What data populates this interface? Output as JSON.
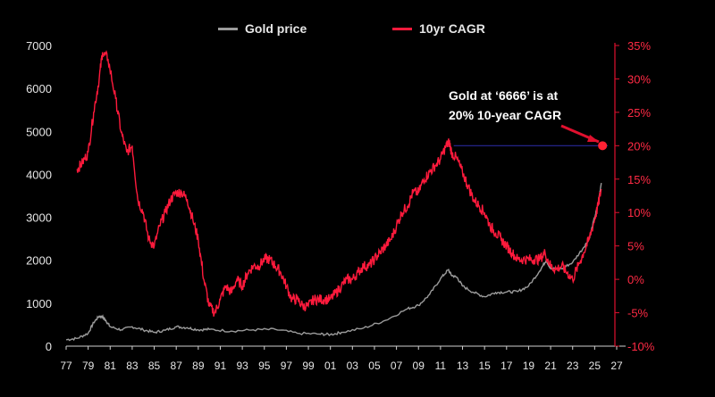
{
  "chart_data": {
    "type": "line",
    "title": "",
    "legend": [
      {
        "name": "Gold price",
        "color": "#9b9b9b"
      },
      {
        "name": "10yr CAGR",
        "color": "#ff1a3c"
      }
    ],
    "x_tick_labels": [
      "77",
      "79",
      "81",
      "83",
      "85",
      "87",
      "89",
      "91",
      "93",
      "95",
      "97",
      "99",
      "01",
      "03",
      "05",
      "07",
      "09",
      "11",
      "13",
      "15",
      "17",
      "19",
      "21",
      "23",
      "25",
      "27"
    ],
    "x_range": [
      1977,
      2027
    ],
    "left_axis": {
      "range": [
        0,
        7000
      ],
      "ticks": [
        "0",
        "1000",
        "2000",
        "3000",
        "4000",
        "5000",
        "6000",
        "7000"
      ]
    },
    "right_axis": {
      "range": [
        -10,
        35
      ],
      "ticks": [
        "-10%",
        "-5%",
        "0%",
        "5%",
        "10%",
        "15%",
        "20%",
        "25%",
        "30%",
        "35%"
      ]
    },
    "series": [
      {
        "name": "Gold price",
        "axis": "left",
        "x": [
          1977,
          1978,
          1979,
          1979.5,
          1980,
          1980.3,
          1980.6,
          1981,
          1982,
          1983,
          1984,
          1985,
          1986,
          1987,
          1988,
          1989,
          1990,
          1992,
          1994,
          1996,
          1998,
          2000,
          2001,
          2002,
          2004,
          2006,
          2008,
          2009,
          2010,
          2011,
          2011.7,
          2012,
          2012.5,
          2013,
          2014,
          2015,
          2016,
          2017,
          2018,
          2019,
          2020,
          2020.6,
          2021,
          2022,
          2023,
          2024,
          2024.5,
          2025,
          2025.3,
          2025.6
        ],
        "values": [
          150,
          180,
          300,
          550,
          700,
          680,
          600,
          450,
          380,
          450,
          380,
          320,
          370,
          450,
          430,
          380,
          390,
          350,
          380,
          390,
          300,
          280,
          270,
          320,
          420,
          600,
          870,
          950,
          1200,
          1570,
          1780,
          1650,
          1600,
          1400,
          1250,
          1150,
          1250,
          1260,
          1270,
          1400,
          1750,
          2000,
          1800,
          1800,
          1950,
          2300,
          2500,
          3000,
          3300,
          3800
        ]
      },
      {
        "name": "10yr CAGR",
        "axis": "right",
        "x": [
          1978,
          1978.5,
          1979,
          1979.5,
          1980,
          1980.3,
          1980.8,
          1981.5,
          1982,
          1982.5,
          1983,
          1983.5,
          1984,
          1984.5,
          1985,
          1985.5,
          1986,
          1986.5,
          1987,
          1987.5,
          1988,
          1988.5,
          1989,
          1989.5,
          1990,
          1990.5,
          1991,
          1991.5,
          1992,
          1992.5,
          1993,
          1993.5,
          1994,
          1994.5,
          1995,
          1995.5,
          1996,
          1996.5,
          1997,
          1997.5,
          1998,
          1998.5,
          1999,
          1999.5,
          2000,
          2000.5,
          2001,
          2001.5,
          2002,
          2002.5,
          2003,
          2003.5,
          2004,
          2004.5,
          2005,
          2005.5,
          2006,
          2006.5,
          2007,
          2007.5,
          2008,
          2008.5,
          2009,
          2009.5,
          2010,
          2010.5,
          2011,
          2011.5,
          2011.8,
          2012,
          2012.5,
          2013,
          2013.5,
          2014,
          2014.5,
          2015,
          2015.5,
          2016,
          2016.5,
          2017,
          2017.5,
          2018,
          2018.5,
          2019,
          2019.5,
          2020,
          2020.5,
          2021,
          2021.5,
          2022,
          2022.5,
          2023,
          2023.5,
          2024,
          2024.5,
          2025,
          2025.3,
          2025.6
        ],
        "values": [
          16.5,
          17.5,
          19,
          25,
          30,
          34,
          33,
          27,
          22,
          19,
          20,
          12,
          10,
          6,
          5,
          8,
          10,
          12,
          13,
          13,
          12,
          9,
          6,
          0,
          -4,
          -5,
          -3,
          -1,
          -2,
          0,
          -1,
          1,
          2,
          2,
          3,
          3,
          2,
          1,
          -1,
          -3,
          -3,
          -4,
          -4,
          -3,
          -3,
          -3,
          -3,
          -2,
          -1,
          0,
          0,
          1,
          2,
          2,
          3,
          4,
          5,
          6,
          8,
          10,
          11,
          13,
          13,
          15,
          16,
          17,
          18,
          20,
          20.5,
          19,
          18,
          16,
          14,
          12,
          11,
          10,
          8,
          7,
          6,
          5,
          4,
          3,
          3,
          3,
          3,
          3,
          4,
          2,
          1.5,
          2,
          1,
          0,
          2,
          4,
          6,
          9,
          11,
          13.5
        ]
      }
    ],
    "reference": {
      "label": "20%",
      "value": 20,
      "x_start": 2012.2,
      "x_end": 2026.2,
      "color": "#2a2a9a"
    },
    "marker": {
      "x": 2026.2,
      "value": 20,
      "color": "#ff2233"
    },
    "annotation": {
      "line1": "Gold at ‘6666’ is at",
      "line2": "20% 10-year CAGR"
    }
  }
}
